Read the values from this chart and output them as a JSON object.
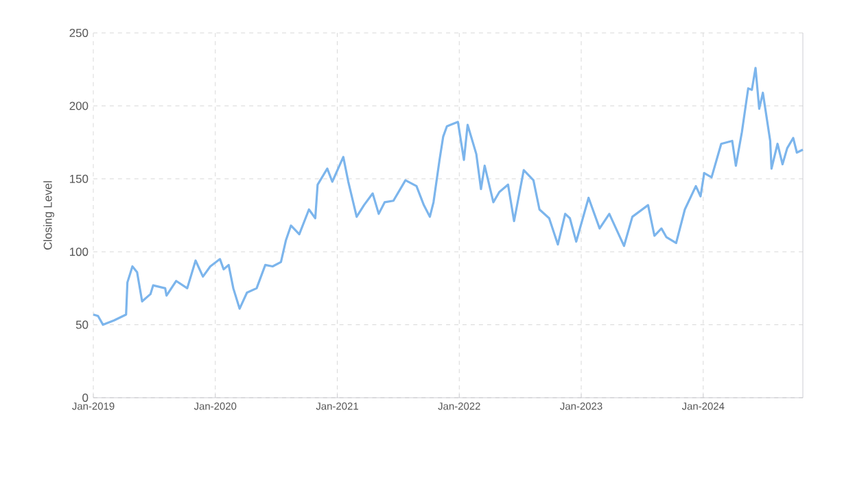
{
  "chart_data": {
    "type": "line",
    "ylabel": "Closing Level",
    "x": [
      "2019-01-01",
      "2019-01-15",
      "2019-01-30",
      "2019-03-04",
      "2019-04-09",
      "2019-04-13",
      "2019-04-28",
      "2019-05-12",
      "2019-05-27",
      "2019-06-21",
      "2019-06-29",
      "2019-08-04",
      "2019-08-08",
      "2019-09-06",
      "2019-10-09",
      "2019-11-03",
      "2019-11-25",
      "2019-12-17",
      "2020-01-15",
      "2020-01-26",
      "2020-02-10",
      "2020-02-24",
      "2020-03-14",
      "2020-04-05",
      "2020-05-04",
      "2020-05-30",
      "2020-06-21",
      "2020-07-16",
      "2020-07-31",
      "2020-08-15",
      "2020-09-09",
      "2020-10-08",
      "2020-10-27",
      "2020-11-03",
      "2020-12-02",
      "2020-12-17",
      "2021-01-19",
      "2021-02-03",
      "2021-02-28",
      "2021-03-22",
      "2021-04-17",
      "2021-05-05",
      "2021-05-23",
      "2021-06-18",
      "2021-07-24",
      "2021-08-26",
      "2021-09-17",
      "2021-10-05",
      "2021-10-16",
      "2021-11-03",
      "2021-11-14",
      "2021-11-25",
      "2021-12-06",
      "2021-12-28",
      "2022-01-15",
      "2022-01-26",
      "2022-02-21",
      "2022-03-07",
      "2022-03-18",
      "2022-04-13",
      "2022-05-01",
      "2022-05-27",
      "2022-06-14",
      "2022-07-13",
      "2022-08-11",
      "2022-08-29",
      "2022-09-27",
      "2022-10-23",
      "2022-11-14",
      "2022-11-28",
      "2022-12-17",
      "2023-01-23",
      "2023-02-25",
      "2023-03-26",
      "2023-05-09",
      "2023-06-03",
      "2023-07-20",
      "2023-08-08",
      "2023-08-29",
      "2023-09-13",
      "2023-10-12",
      "2023-11-07",
      "2023-12-10",
      "2023-12-24",
      "2024-01-04",
      "2024-01-26",
      "2024-02-24",
      "2024-03-28",
      "2024-04-08",
      "2024-04-26",
      "2024-05-15",
      "2024-05-26",
      "2024-06-06",
      "2024-06-17",
      "2024-06-28",
      "2024-07-20",
      "2024-07-24",
      "2024-08-11",
      "2024-08-26",
      "2024-09-09",
      "2024-09-27",
      "2024-10-08",
      "2024-10-26"
    ],
    "series": [
      {
        "color": "#7cb5ec",
        "values": [
          57,
          56,
          50,
          53,
          57,
          79,
          90,
          86,
          66,
          71,
          77,
          75,
          70,
          80,
          75,
          94,
          83,
          90,
          95,
          88,
          91,
          75,
          61,
          72,
          75,
          91,
          90,
          93,
          108,
          118,
          112,
          129,
          123,
          146,
          157,
          148,
          165,
          148,
          124,
          132,
          140,
          126,
          134,
          135,
          149,
          145,
          132,
          124,
          134,
          163,
          179,
          186,
          187,
          189,
          163,
          187,
          167,
          143,
          159,
          134,
          141,
          146,
          121,
          156,
          149,
          129,
          123,
          105,
          126,
          123,
          107,
          137,
          116,
          126,
          104,
          124,
          132,
          111,
          116,
          110,
          106,
          129,
          145,
          138,
          154,
          151,
          174,
          176,
          159,
          182,
          212,
          211,
          226,
          198,
          209,
          176,
          157,
          174,
          160,
          171,
          178,
          168,
          170
        ]
      }
    ],
    "xlim": [
      "2019-01-01",
      "2024-10-26"
    ],
    "xticks": [
      {
        "value": "2019-01-01",
        "label": "Jan-2019"
      },
      {
        "value": "2020-01-01",
        "label": "Jan-2020"
      },
      {
        "value": "2021-01-01",
        "label": "Jan-2021"
      },
      {
        "value": "2022-01-01",
        "label": "Jan-2022"
      },
      {
        "value": "2023-01-01",
        "label": "Jan-2023"
      },
      {
        "value": "2024-01-01",
        "label": "Jan-2024"
      }
    ],
    "ylim": [
      0,
      250
    ],
    "yticks": [
      0,
      50,
      100,
      150,
      200,
      250
    ],
    "grid": true,
    "marker": "none",
    "line_style": "solid"
  }
}
